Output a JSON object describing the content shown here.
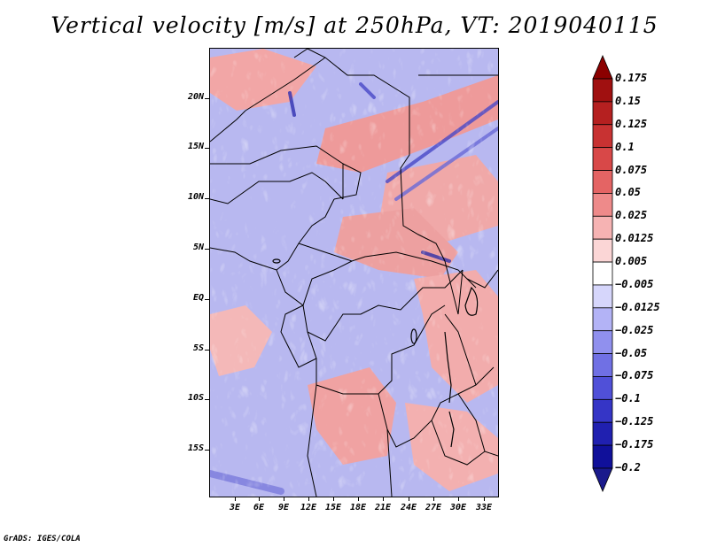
{
  "title": "Vertical velocity [m/s] at 250hPa, VT: 2019040115",
  "map": {
    "region": "Central Africa",
    "variable": "Vertical velocity",
    "units": "m/s",
    "level": "250hPa",
    "valid_time": "2019040115",
    "lat_labels": [
      "20N",
      "15N",
      "10N",
      "5N",
      "EQ",
      "5S",
      "10S",
      "15S"
    ],
    "lon_labels": [
      "3E",
      "6E",
      "9E",
      "12E",
      "15E",
      "18E",
      "21E",
      "24E",
      "27E",
      "30E",
      "33E"
    ]
  },
  "colorbar": {
    "labels": [
      "0.175",
      "0.15",
      "0.125",
      "0.1",
      "0.075",
      "0.05",
      "0.025",
      "0.0125",
      "0.005",
      "−0.005",
      "−0.0125",
      "−0.025",
      "−0.05",
      "−0.075",
      "−0.1",
      "−0.125",
      "−0.175",
      "−0.2"
    ],
    "colors": [
      "#8b0000",
      "#a01010",
      "#b52020",
      "#c83232",
      "#d84848",
      "#e46464",
      "#ee8a8a",
      "#f6b3b3",
      "#fbd6d6",
      "#ffffff",
      "#d6d6fb",
      "#b3b3f6",
      "#9090ee",
      "#7070e4",
      "#5050d8",
      "#3535c6",
      "#2020b0",
      "#10109a",
      "#1a1a8c"
    ]
  },
  "credit": "GrADS: IGES/COLA"
}
